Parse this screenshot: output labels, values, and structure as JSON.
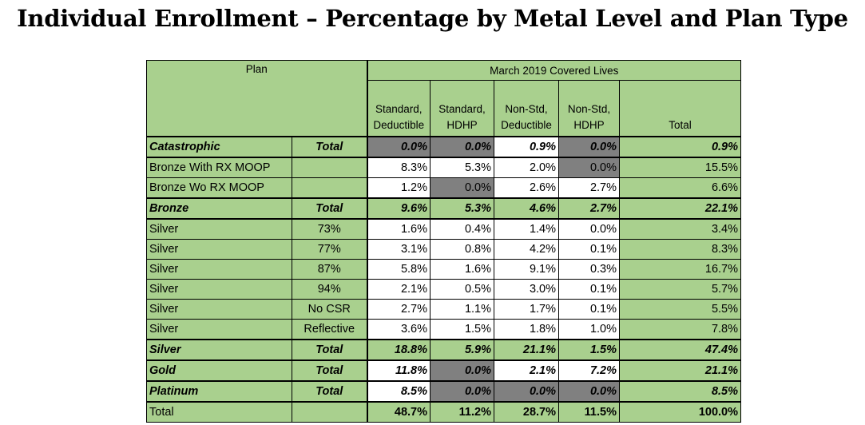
{
  "title": "Individual Enrollment – Percentage by Metal Level and Plan Type",
  "table": {
    "plan_header": "Plan",
    "group_header": "March 2019 Covered Lives",
    "columns": [
      [
        "Standard,",
        "Deductible"
      ],
      [
        "Standard,",
        "HDHP"
      ],
      [
        "Non-Std,",
        "Deductible"
      ],
      [
        "Non-Std,",
        "HDHP"
      ],
      [
        "",
        "Total"
      ]
    ],
    "colors": {
      "green": "#a9d08e",
      "gray": "#808080",
      "white": "#ffffff"
    },
    "rows": [
      {
        "label": "Catastrophic",
        "sub": "Total",
        "values": [
          "0.0%",
          "0.0%",
          "0.9%",
          "0.0%"
        ],
        "total": "0.9%",
        "type": "subtotal",
        "gray": [
          0,
          1,
          3
        ]
      },
      {
        "label": "Bronze With RX MOOP",
        "sub": "",
        "values": [
          "8.3%",
          "5.3%",
          "2.0%",
          "0.0%"
        ],
        "total": "15.5%",
        "type": "detail",
        "gray": [
          3
        ]
      },
      {
        "label": "Bronze Wo RX MOOP",
        "sub": "",
        "values": [
          "1.2%",
          "0.0%",
          "2.6%",
          "2.7%"
        ],
        "total": "6.6%",
        "type": "detail",
        "gray": [
          1
        ]
      },
      {
        "label": "Bronze",
        "sub": "Total",
        "values": [
          "9.6%",
          "5.3%",
          "4.6%",
          "2.7%"
        ],
        "total": "22.1%",
        "type": "subtotal-green",
        "gray": []
      },
      {
        "label": "Silver",
        "sub": "73%",
        "values": [
          "1.6%",
          "0.4%",
          "1.4%",
          "0.0%"
        ],
        "total": "3.4%",
        "type": "detail",
        "gray": []
      },
      {
        "label": "Silver",
        "sub": "77%",
        "values": [
          "3.1%",
          "0.8%",
          "4.2%",
          "0.1%"
        ],
        "total": "8.3%",
        "type": "detail",
        "gray": []
      },
      {
        "label": "Silver",
        "sub": "87%",
        "values": [
          "5.8%",
          "1.6%",
          "9.1%",
          "0.3%"
        ],
        "total": "16.7%",
        "type": "detail",
        "gray": []
      },
      {
        "label": "Silver",
        "sub": "94%",
        "values": [
          "2.1%",
          "0.5%",
          "3.0%",
          "0.1%"
        ],
        "total": "5.7%",
        "type": "detail",
        "gray": []
      },
      {
        "label": "Silver",
        "sub": "No CSR",
        "values": [
          "2.7%",
          "1.1%",
          "1.7%",
          "0.1%"
        ],
        "total": "5.5%",
        "type": "detail",
        "gray": []
      },
      {
        "label": "Silver",
        "sub": "Reflective",
        "values": [
          "3.6%",
          "1.5%",
          "1.8%",
          "1.0%"
        ],
        "total": "7.8%",
        "type": "detail",
        "gray": []
      },
      {
        "label": "Silver",
        "sub": "Total",
        "values": [
          "18.8%",
          "5.9%",
          "21.1%",
          "1.5%"
        ],
        "total": "47.4%",
        "type": "subtotal-green",
        "gray": []
      },
      {
        "label": "Gold",
        "sub": "Total",
        "values": [
          "11.8%",
          "0.0%",
          "2.1%",
          "7.2%"
        ],
        "total": "21.1%",
        "type": "subtotal",
        "gray": [
          1
        ]
      },
      {
        "label": "Platinum",
        "sub": "Total",
        "values": [
          "8.5%",
          "0.0%",
          "0.0%",
          "0.0%"
        ],
        "total": "8.5%",
        "type": "subtotal",
        "gray": [
          1,
          2,
          3
        ]
      },
      {
        "label": "Total",
        "sub": "",
        "values": [
          "48.7%",
          "11.2%",
          "28.7%",
          "11.5%"
        ],
        "total": "100.0%",
        "type": "grand",
        "gray": []
      }
    ]
  }
}
